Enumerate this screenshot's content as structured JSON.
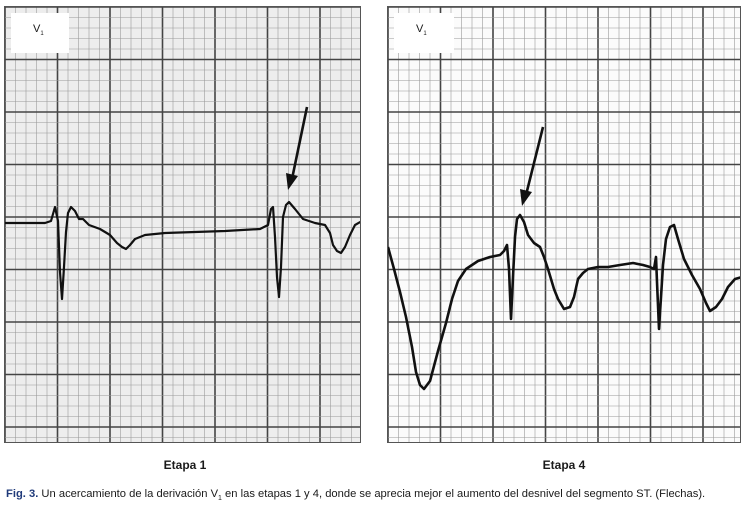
{
  "panels": [
    {
      "lead": "V",
      "lead_sub": "1",
      "stage": "Etapa 1"
    },
    {
      "lead": "V",
      "lead_sub": "1",
      "stage": "Etapa 4"
    }
  ],
  "caption": {
    "fig_label": "Fig. 3.",
    "text_before_sub": " Un acercamiento de la derivación V",
    "sub": "1",
    "text_after_sub": " en las etapas 1 y 4, donde se aprecia mejor el aumento del desnivel del segmento ST. (Flechas)."
  },
  "colors": {
    "trace": "#111111",
    "grid_major": "#444444",
    "grid_minor": "#9a9a9a",
    "caption_label": "#1f3a7a"
  }
}
